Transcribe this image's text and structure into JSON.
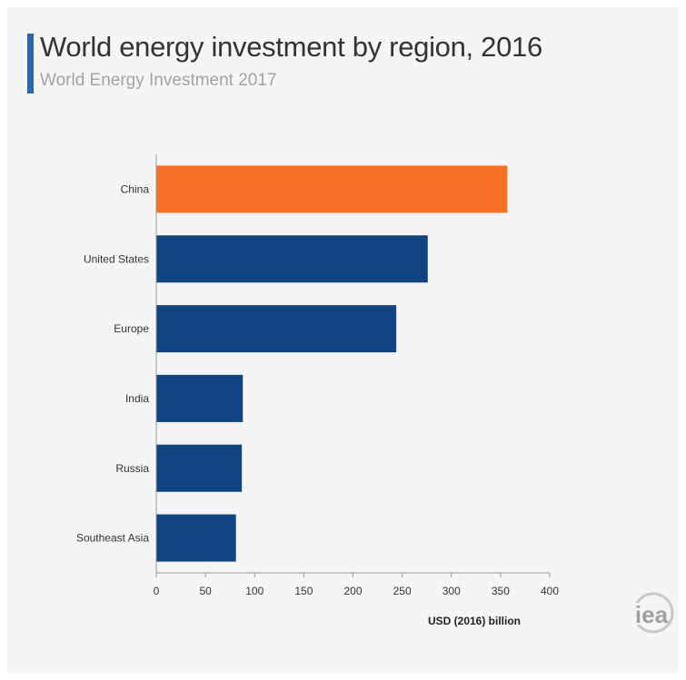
{
  "header": {
    "title": "World energy investment by region, 2016",
    "subtitle": "World Energy Investment 2017"
  },
  "logo": {
    "icon": "iea-logo-icon",
    "text": "iea"
  },
  "colors": {
    "highlight": "#f57123",
    "bar": "#104582",
    "accent": "#2a66b0"
  },
  "chart_data": {
    "type": "bar",
    "orientation": "horizontal",
    "categories": [
      "China",
      "United States",
      "Europe",
      "India",
      "Russia",
      "Southeast Asia"
    ],
    "values": [
      357,
      276,
      244,
      88,
      87,
      81
    ],
    "highlight": [
      "China"
    ],
    "xlabel": "USD (2016) billion",
    "xlim": [
      0,
      400
    ],
    "xticks": [
      0,
      50,
      100,
      150,
      200,
      250,
      300,
      350,
      400
    ],
    "grid": false
  }
}
